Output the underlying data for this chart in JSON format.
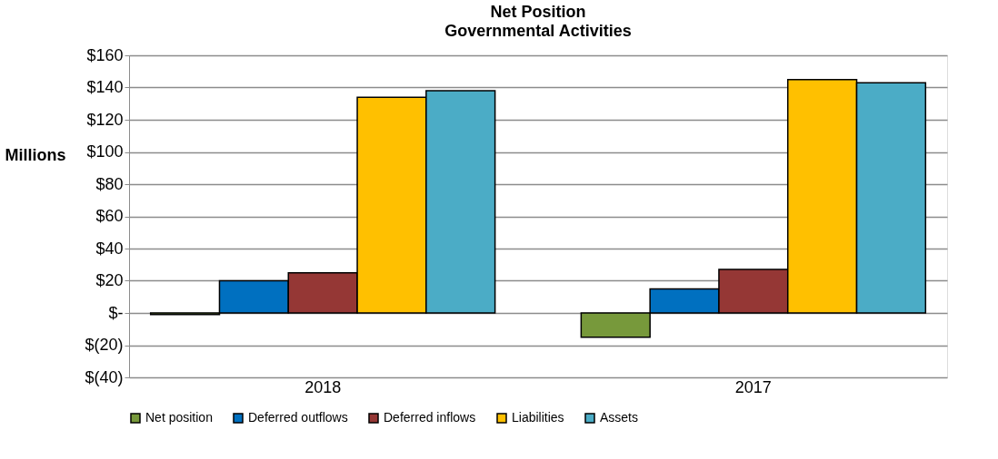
{
  "chart_data": {
    "type": "bar",
    "title": "Net Position",
    "subtitle": "Governmental Activities",
    "ylabel": "Millions",
    "categories": [
      "2018",
      "2017"
    ],
    "series": [
      {
        "name": "Net position",
        "color": "#77993b",
        "values": [
          -1,
          -15
        ]
      },
      {
        "name": "Deferred outflows",
        "color": "#0070c0",
        "values": [
          20,
          15
        ]
      },
      {
        "name": "Deferred inflows",
        "color": "#953735",
        "values": [
          25,
          27
        ]
      },
      {
        "name": "Liabilities",
        "color": "#ffc000",
        "values": [
          134,
          145
        ]
      },
      {
        "name": "Assets",
        "color": "#4bacc6",
        "values": [
          138,
          143
        ]
      }
    ],
    "ylim": [
      -40,
      160
    ],
    "yticks": [
      {
        "value": -40,
        "label": "$(40)"
      },
      {
        "value": -20,
        "label": "$(20)"
      },
      {
        "value": 0,
        "label": "$-"
      },
      {
        "value": 20,
        "label": "$20"
      },
      {
        "value": 40,
        "label": "$40"
      },
      {
        "value": 60,
        "label": "$60"
      },
      {
        "value": 80,
        "label": "$80"
      },
      {
        "value": 100,
        "label": "$100"
      },
      {
        "value": 120,
        "label": "$120"
      },
      {
        "value": 140,
        "label": "$140"
      },
      {
        "value": 160,
        "label": "$160"
      }
    ],
    "grid": "y",
    "legend": "bottom"
  }
}
